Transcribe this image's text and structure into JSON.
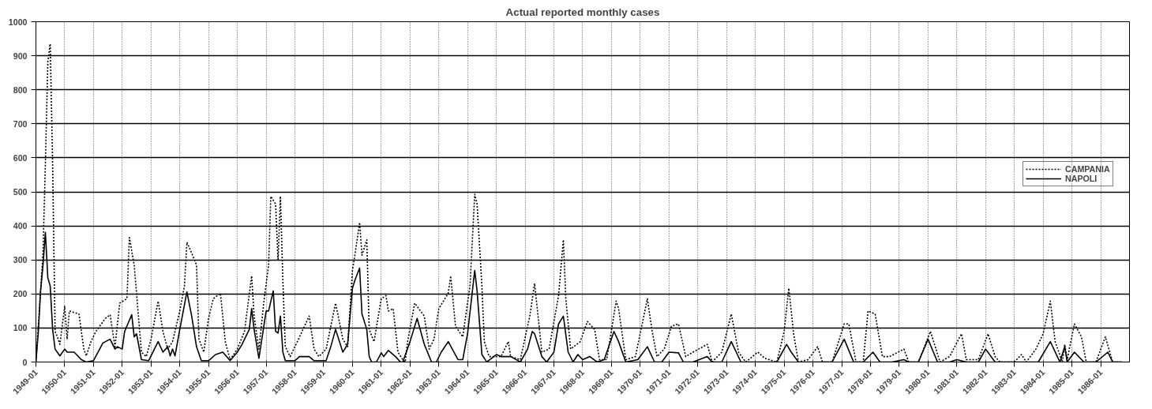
{
  "chart_data": {
    "type": "line",
    "title": "Actual reported monthly cases",
    "xlim": [
      "1949-01",
      "1987-01"
    ],
    "ylim": [
      0,
      1000
    ],
    "xticks": [
      "1949-01",
      "1950-01",
      "1951-01",
      "1952-01",
      "1953-01",
      "1954-01",
      "1955-01",
      "1956-01",
      "1957-01",
      "1958-01",
      "1959-01",
      "1960-01",
      "1961-01",
      "1962-01",
      "1963-01",
      "1964-01",
      "1965-01",
      "1966-01",
      "1967-01",
      "1968-01",
      "1969-01",
      "1970-01",
      "1971-01",
      "1972-01",
      "1973-01",
      "1974-01",
      "1975-01",
      "1976-01",
      "1977-01",
      "1978-01",
      "1979-01",
      "1980-01",
      "1981-01",
      "1982-01",
      "1983-01",
      "1984-01",
      "1985-01",
      "1986-01"
    ],
    "yticks": [
      0,
      100,
      200,
      300,
      400,
      500,
      600,
      700,
      800,
      900,
      1000
    ],
    "grid": true,
    "legend": "right",
    "series": [
      {
        "name": "CAMPANIA",
        "color": "#000000",
        "line_style": "dotted",
        "x": [
          "1949-01",
          "1949-03",
          "1949-04",
          "1949-05",
          "1949-06",
          "1949-07",
          "1949-08",
          "1949-09",
          "1949-10",
          "1949-11",
          "1950-01",
          "1950-02",
          "1950-03",
          "1950-07",
          "1950-09",
          "1950-10",
          "1950-12",
          "1951-02",
          "1951-06",
          "1951-08",
          "1951-10",
          "1951-12",
          "1952-03",
          "1952-04",
          "1952-06",
          "1952-07",
          "1952-09",
          "1952-11",
          "1953-01",
          "1953-04",
          "1953-06",
          "1953-08",
          "1953-10",
          "1954-01",
          "1954-03",
          "1954-04",
          "1954-06",
          "1954-08",
          "1954-09",
          "1954-11",
          "1955-01",
          "1955-03",
          "1955-06",
          "1955-08",
          "1955-10",
          "1956-01",
          "1956-04",
          "1956-07",
          "1956-08",
          "1956-10",
          "1956-12",
          "1957-02",
          "1957-03",
          "1957-05",
          "1957-06",
          "1957-07",
          "1957-08",
          "1957-09",
          "1957-11",
          "1958-02",
          "1958-07",
          "1958-09",
          "1958-11",
          "1959-02",
          "1959-06",
          "1959-09",
          "1959-11",
          "1960-01",
          "1960-02",
          "1960-04",
          "1960-05",
          "1960-07",
          "1960-08",
          "1960-10",
          "1961-01",
          "1961-03",
          "1961-04",
          "1961-06",
          "1961-08",
          "1961-10",
          "1961-11",
          "1961-12",
          "1962-03",
          "1962-07",
          "1962-09",
          "1962-11",
          "1963-01",
          "1963-05",
          "1963-06",
          "1963-08",
          "1963-11",
          "1964-02",
          "1964-04",
          "1964-05",
          "1964-07",
          "1964-08",
          "1964-10",
          "1965-03",
          "1965-06",
          "1965-07",
          "1965-11",
          "1966-03",
          "1966-05",
          "1966-08",
          "1966-11",
          "1967-03",
          "1967-05",
          "1967-06",
          "1967-08",
          "1967-12",
          "1968-03",
          "1968-06",
          "1968-08",
          "1968-11",
          "1969-03",
          "1969-04",
          "1969-07",
          "1969-11",
          "1970-04",
          "1970-06",
          "1970-08",
          "1970-11",
          "1971-02",
          "1971-05",
          "1971-08",
          "1971-11",
          "1972-05",
          "1972-07",
          "1972-11",
          "1973-03",
          "1973-06",
          "1973-09",
          "1974-02",
          "1974-05",
          "1974-10",
          "1975-01",
          "1975-03",
          "1975-05",
          "1975-07",
          "1975-11",
          "1976-03",
          "1976-05",
          "1976-09",
          "1977-02",
          "1977-04",
          "1977-07",
          "1977-10",
          "1977-12",
          "1978-03",
          "1978-06",
          "1978-09",
          "1979-03",
          "1979-05",
          "1979-09",
          "1980-02",
          "1980-06",
          "1980-10",
          "1981-03",
          "1981-05",
          "1981-10",
          "1982-02",
          "1982-05",
          "1982-07",
          "1983-01",
          "1983-04",
          "1983-06",
          "1983-10",
          "1984-01",
          "1984-04",
          "1984-06",
          "1984-09",
          "1984-10",
          "1984-11",
          "1985-02",
          "1985-05",
          "1985-07",
          "1985-11",
          "1986-03",
          "1986-06",
          "1986-10"
        ],
        "values": [
          0,
          209,
          320,
          583,
          882,
          935,
          583,
          90,
          74,
          52,
          164,
          67,
          150,
          141,
          38,
          18,
          60,
          90,
          128,
          139,
          45,
          173,
          186,
          366,
          285,
          202,
          29,
          16,
          67,
          179,
          90,
          38,
          60,
          150,
          224,
          352,
          320,
          285,
          67,
          29,
          128,
          186,
          202,
          60,
          7,
          38,
          90,
          253,
          135,
          38,
          173,
          285,
          487,
          464,
          298,
          487,
          240,
          45,
          16,
          60,
          135,
          38,
          16,
          38,
          173,
          67,
          45,
          269,
          314,
          410,
          314,
          359,
          96,
          60,
          186,
          195,
          150,
          157,
          29,
          7,
          0,
          60,
          173,
          135,
          38,
          67,
          157,
          202,
          253,
          105,
          74,
          224,
          493,
          464,
          224,
          60,
          16,
          16,
          60,
          16,
          7,
          135,
          231,
          29,
          38,
          195,
          359,
          186,
          38,
          60,
          119,
          96,
          7,
          7,
          179,
          157,
          7,
          16,
          186,
          90,
          16,
          38,
          105,
          112,
          16,
          29,
          52,
          0,
          29,
          141,
          29,
          0,
          29,
          11,
          0,
          90,
          217,
          83,
          0,
          7,
          45,
          0,
          0,
          112,
          112,
          0,
          0,
          150,
          141,
          16,
          16,
          38,
          0,
          0,
          90,
          0,
          16,
          83,
          7,
          7,
          83,
          16,
          0,
          0,
          22,
          0,
          38,
          83,
          179,
          60,
          0,
          52,
          7,
          112,
          74,
          0,
          0,
          74,
          0,
          0
        ]
      },
      {
        "name": "NAPOLI",
        "color": "#000000",
        "line_style": "solid",
        "x": [
          "1949-01",
          "1949-02",
          "1949-03",
          "1949-04",
          "1949-05",
          "1949-06",
          "1949-07",
          "1949-08",
          "1949-09",
          "1949-11",
          "1950-01",
          "1950-02",
          "1950-05",
          "1950-08",
          "1950-10",
          "1951-01",
          "1951-05",
          "1951-08",
          "1951-10",
          "1951-11",
          "1952-01",
          "1952-02",
          "1952-05",
          "1952-06",
          "1952-07",
          "1952-09",
          "1952-12",
          "1953-04",
          "1953-06",
          "1953-08",
          "1953-09",
          "1953-10",
          "1953-11",
          "1954-01",
          "1954-04",
          "1954-06",
          "1954-08",
          "1954-10",
          "1955-01",
          "1955-04",
          "1955-07",
          "1955-10",
          "1956-01",
          "1956-03",
          "1956-06",
          "1956-07",
          "1956-08",
          "1956-10",
          "1957-01",
          "1957-02",
          "1957-04",
          "1957-05",
          "1957-06",
          "1957-07",
          "1957-08",
          "1957-09",
          "1958-01",
          "1958-03",
          "1958-07",
          "1958-09",
          "1959-02",
          "1959-04",
          "1959-06",
          "1959-09",
          "1959-11",
          "1960-01",
          "1960-02",
          "1960-04",
          "1960-05",
          "1960-07",
          "1960-08",
          "1960-09",
          "1960-11",
          "1961-01",
          "1961-02",
          "1961-04",
          "1961-07",
          "1961-09",
          "1961-10",
          "1962-01",
          "1962-04",
          "1962-07",
          "1962-10",
          "1962-12",
          "1963-02",
          "1963-05",
          "1963-09",
          "1963-11",
          "1964-01",
          "1964-04",
          "1964-05",
          "1964-07",
          "1964-09",
          "1965-01",
          "1965-03",
          "1965-07",
          "1965-11",
          "1966-02",
          "1966-04",
          "1966-05",
          "1966-08",
          "1966-10",
          "1967-01",
          "1967-03",
          "1967-05",
          "1967-07",
          "1967-09",
          "1967-11",
          "1968-01",
          "1968-04",
          "1968-07",
          "1968-10",
          "1969-02",
          "1969-04",
          "1969-07",
          "1969-12",
          "1970-04",
          "1970-07",
          "1970-10",
          "1971-01",
          "1971-05",
          "1971-07",
          "1971-11",
          "1972-05",
          "1972-07",
          "1972-11",
          "1973-03",
          "1973-07",
          "1974-05",
          "1974-06",
          "1974-10",
          "1975-02",
          "1975-04",
          "1975-07",
          "1976-04",
          "1976-09",
          "1977-02",
          "1977-06",
          "1977-10",
          "1978-02",
          "1978-05",
          "1978-10",
          "1979-03",
          "1979-05",
          "1979-09",
          "1980-01",
          "1980-05",
          "1980-10",
          "1981-01",
          "1981-05",
          "1981-10",
          "1982-01",
          "1982-05",
          "1983-11",
          "1984-04",
          "1984-08",
          "1984-10",
          "1984-11",
          "1985-02",
          "1985-06",
          "1985-11",
          "1986-04",
          "1986-06",
          "1986-10"
        ],
        "values": [
          0,
          90,
          209,
          285,
          381,
          247,
          224,
          96,
          38,
          18,
          38,
          29,
          29,
          7,
          0,
          4,
          56,
          67,
          38,
          45,
          38,
          90,
          139,
          74,
          83,
          7,
          4,
          60,
          29,
          45,
          18,
          38,
          18,
          96,
          206,
          135,
          45,
          4,
          4,
          22,
          29,
          4,
          29,
          52,
          96,
          157,
          96,
          11,
          150,
          150,
          209,
          90,
          85,
          135,
          29,
          4,
          4,
          16,
          16,
          4,
          4,
          45,
          96,
          29,
          52,
          217,
          240,
          276,
          141,
          96,
          16,
          0,
          0,
          27,
          16,
          34,
          16,
          0,
          0,
          60,
          128,
          52,
          0,
          0,
          29,
          60,
          7,
          7,
          83,
          269,
          209,
          22,
          0,
          22,
          16,
          16,
          0,
          38,
          90,
          83,
          16,
          0,
          29,
          112,
          135,
          29,
          0,
          22,
          7,
          16,
          0,
          7,
          90,
          60,
          0,
          7,
          45,
          0,
          0,
          29,
          27,
          0,
          0,
          16,
          0,
          0,
          60,
          0,
          0,
          0,
          0,
          52,
          29,
          0,
          0,
          0,
          67,
          0,
          0,
          29,
          0,
          0,
          7,
          0,
          0,
          67,
          0,
          0,
          7,
          0,
          0,
          38,
          0,
          0,
          60,
          0,
          45,
          0,
          29,
          0,
          0,
          29,
          0,
          0
        ]
      }
    ]
  }
}
